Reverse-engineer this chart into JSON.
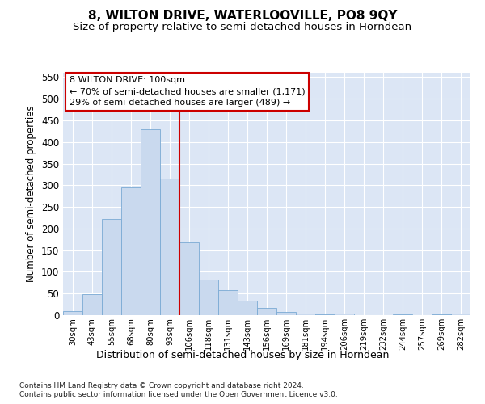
{
  "title": "8, WILTON DRIVE, WATERLOOVILLE, PO8 9QY",
  "subtitle": "Size of property relative to semi-detached houses in Horndean",
  "xlabel": "Distribution of semi-detached houses by size in Horndean",
  "ylabel": "Number of semi-detached properties",
  "footer_line1": "Contains HM Land Registry data © Crown copyright and database right 2024.",
  "footer_line2": "Contains public sector information licensed under the Open Government Licence v3.0.",
  "bar_labels": [
    "30sqm",
    "43sqm",
    "55sqm",
    "68sqm",
    "80sqm",
    "93sqm",
    "106sqm",
    "118sqm",
    "131sqm",
    "143sqm",
    "156sqm",
    "169sqm",
    "181sqm",
    "194sqm",
    "206sqm",
    "219sqm",
    "232sqm",
    "244sqm",
    "257sqm",
    "269sqm",
    "282sqm"
  ],
  "bar_values": [
    10,
    48,
    222,
    295,
    430,
    315,
    168,
    82,
    57,
    33,
    17,
    7,
    4,
    2,
    3,
    0,
    0,
    1,
    0,
    1,
    3
  ],
  "bar_color": "#c9d9ee",
  "bar_edge_color": "#7aaad4",
  "vline_color": "#cc0000",
  "annotation_line1": "8 WILTON DRIVE: 100sqm",
  "annotation_line2": "← 70% of semi-detached houses are smaller (1,171)",
  "annotation_line3": "29% of semi-detached houses are larger (489) →",
  "ylim": [
    0,
    560
  ],
  "yticks": [
    0,
    50,
    100,
    150,
    200,
    250,
    300,
    350,
    400,
    450,
    500,
    550
  ],
  "plot_bg_color": "#dce6f5",
  "grid_color": "#ffffff",
  "title_fontsize": 11,
  "subtitle_fontsize": 9.5
}
